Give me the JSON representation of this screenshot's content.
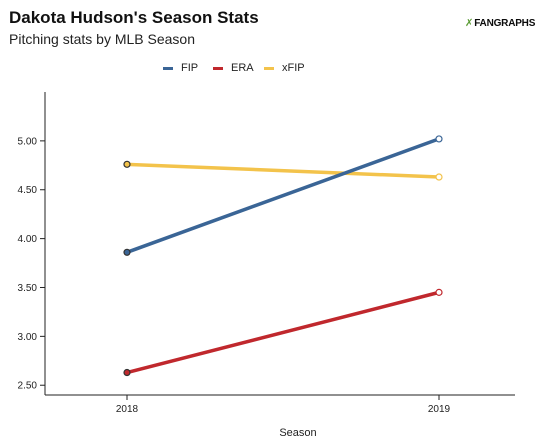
{
  "header": {
    "title": "Dakota Hudson's Season Stats",
    "subtitle": "Pitching stats by MLB Season",
    "logo_text": "FANGRAPHS"
  },
  "colors": {
    "FIP": "#3a6596",
    "ERA": "#c0282d",
    "xFIP": "#f3c34b",
    "axis": "#222222",
    "logo_mark": "#5a9b33"
  },
  "chart_data": {
    "type": "line",
    "title": "Dakota Hudson's Season Stats",
    "subtitle": "Pitching stats by MLB Season",
    "xlabel": "Season",
    "ylabel": "",
    "categories": [
      "2018",
      "2019"
    ],
    "ylim": [
      2.4,
      5.5
    ],
    "yticks": [
      "2.50",
      "3.00",
      "3.50",
      "4.00",
      "4.50",
      "5.00"
    ],
    "grid": false,
    "legend_position": "top-center",
    "series": [
      {
        "name": "FIP",
        "values": [
          3.86,
          5.02
        ]
      },
      {
        "name": "ERA",
        "values": [
          2.63,
          3.45
        ]
      },
      {
        "name": "xFIP",
        "values": [
          4.76,
          4.63
        ]
      }
    ]
  }
}
